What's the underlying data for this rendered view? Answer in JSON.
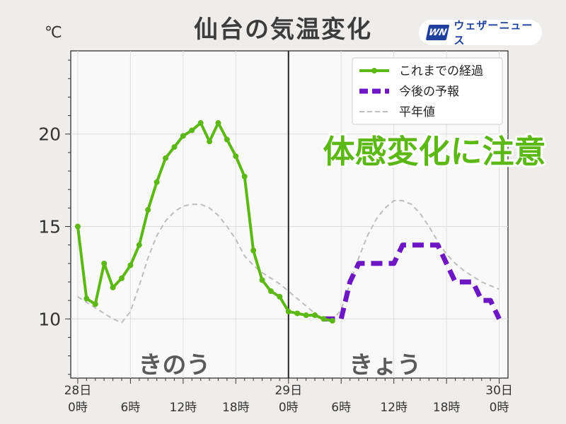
{
  "title": "仙台の気温変化",
  "brand": {
    "logo": "WN",
    "name": "ウェザーニュース"
  },
  "headline": "体感変化に注意",
  "chart_data": {
    "type": "line",
    "unit_label": "℃",
    "ylim": [
      6.8,
      24.5
    ],
    "xlim": [
      -0.8,
      49
    ],
    "yticks": [
      10,
      15,
      20
    ],
    "grid": true,
    "legend_position": "top-right",
    "x_ticks": [
      {
        "x": 0,
        "label": "28日\n0時"
      },
      {
        "x": 6,
        "label": "6時"
      },
      {
        "x": 12,
        "label": "12時"
      },
      {
        "x": 18,
        "label": "18時"
      },
      {
        "x": 24,
        "label": "29日\n0時"
      },
      {
        "x": 30,
        "label": "6時"
      },
      {
        "x": 36,
        "label": "12時"
      },
      {
        "x": 42,
        "label": "18時"
      },
      {
        "x": 48,
        "label": "30日\n0時"
      }
    ],
    "day_divider_x": 24,
    "day_labels": [
      {
        "text": "きのう",
        "x": 11
      },
      {
        "text": "きょう",
        "x": 35
      }
    ],
    "series": [
      {
        "name": "これまでの経過",
        "style": "solid-markers",
        "color": "#5cb815",
        "x": [
          0,
          1,
          2,
          3,
          4,
          5,
          6,
          7,
          8,
          9,
          10,
          11,
          12,
          13,
          14,
          15,
          16,
          17,
          18,
          19,
          20,
          21,
          22,
          23,
          24,
          25,
          26,
          27,
          28,
          29
        ],
        "y": [
          15.0,
          11.1,
          10.8,
          13.0,
          11.7,
          12.2,
          12.9,
          14.0,
          15.9,
          17.4,
          18.7,
          19.3,
          19.9,
          20.2,
          20.6,
          19.6,
          20.6,
          19.7,
          18.8,
          17.7,
          13.7,
          12.1,
          11.5,
          11.2,
          10.4,
          10.3,
          10.2,
          10.2,
          10.0,
          9.9
        ]
      },
      {
        "name": "今後の予報",
        "style": "dashed-thick",
        "color": "#6e16c4",
        "x": [
          28,
          30,
          31,
          32,
          33,
          36,
          37,
          38,
          41,
          42,
          43,
          44,
          45,
          46,
          47,
          48
        ],
        "y": [
          10.0,
          10.0,
          12.0,
          13.0,
          13.0,
          13.0,
          14.0,
          14.0,
          14.0,
          13.0,
          12.0,
          12.0,
          12.0,
          11.0,
          11.0,
          10.0
        ]
      },
      {
        "name": "平年値",
        "style": "dashed-thin",
        "color": "#bdbdbd",
        "x": [
          0,
          2,
          4,
          5,
          6,
          7,
          8,
          9,
          10,
          11,
          12,
          13,
          14,
          15,
          16,
          17,
          18,
          19,
          20,
          21,
          22,
          23,
          24,
          25,
          26,
          27,
          28,
          29,
          30,
          31,
          32,
          33,
          34,
          35,
          36,
          37,
          38,
          39,
          40,
          41,
          42,
          43,
          44,
          45,
          46,
          47,
          48
        ],
        "y": [
          11.2,
          10.6,
          10.0,
          9.8,
          10.4,
          11.8,
          13.3,
          14.5,
          15.3,
          15.8,
          16.1,
          16.2,
          16.2,
          16.0,
          15.6,
          15.0,
          14.3,
          13.4,
          12.9,
          12.5,
          12.2,
          11.9,
          11.5,
          11.1,
          10.7,
          10.3,
          10.0,
          9.9,
          10.5,
          11.9,
          13.3,
          14.5,
          15.4,
          16.0,
          16.4,
          16.4,
          16.2,
          15.7,
          15.0,
          14.2,
          13.5,
          13.0,
          12.6,
          12.3,
          12.0,
          11.8,
          11.6
        ]
      }
    ]
  }
}
